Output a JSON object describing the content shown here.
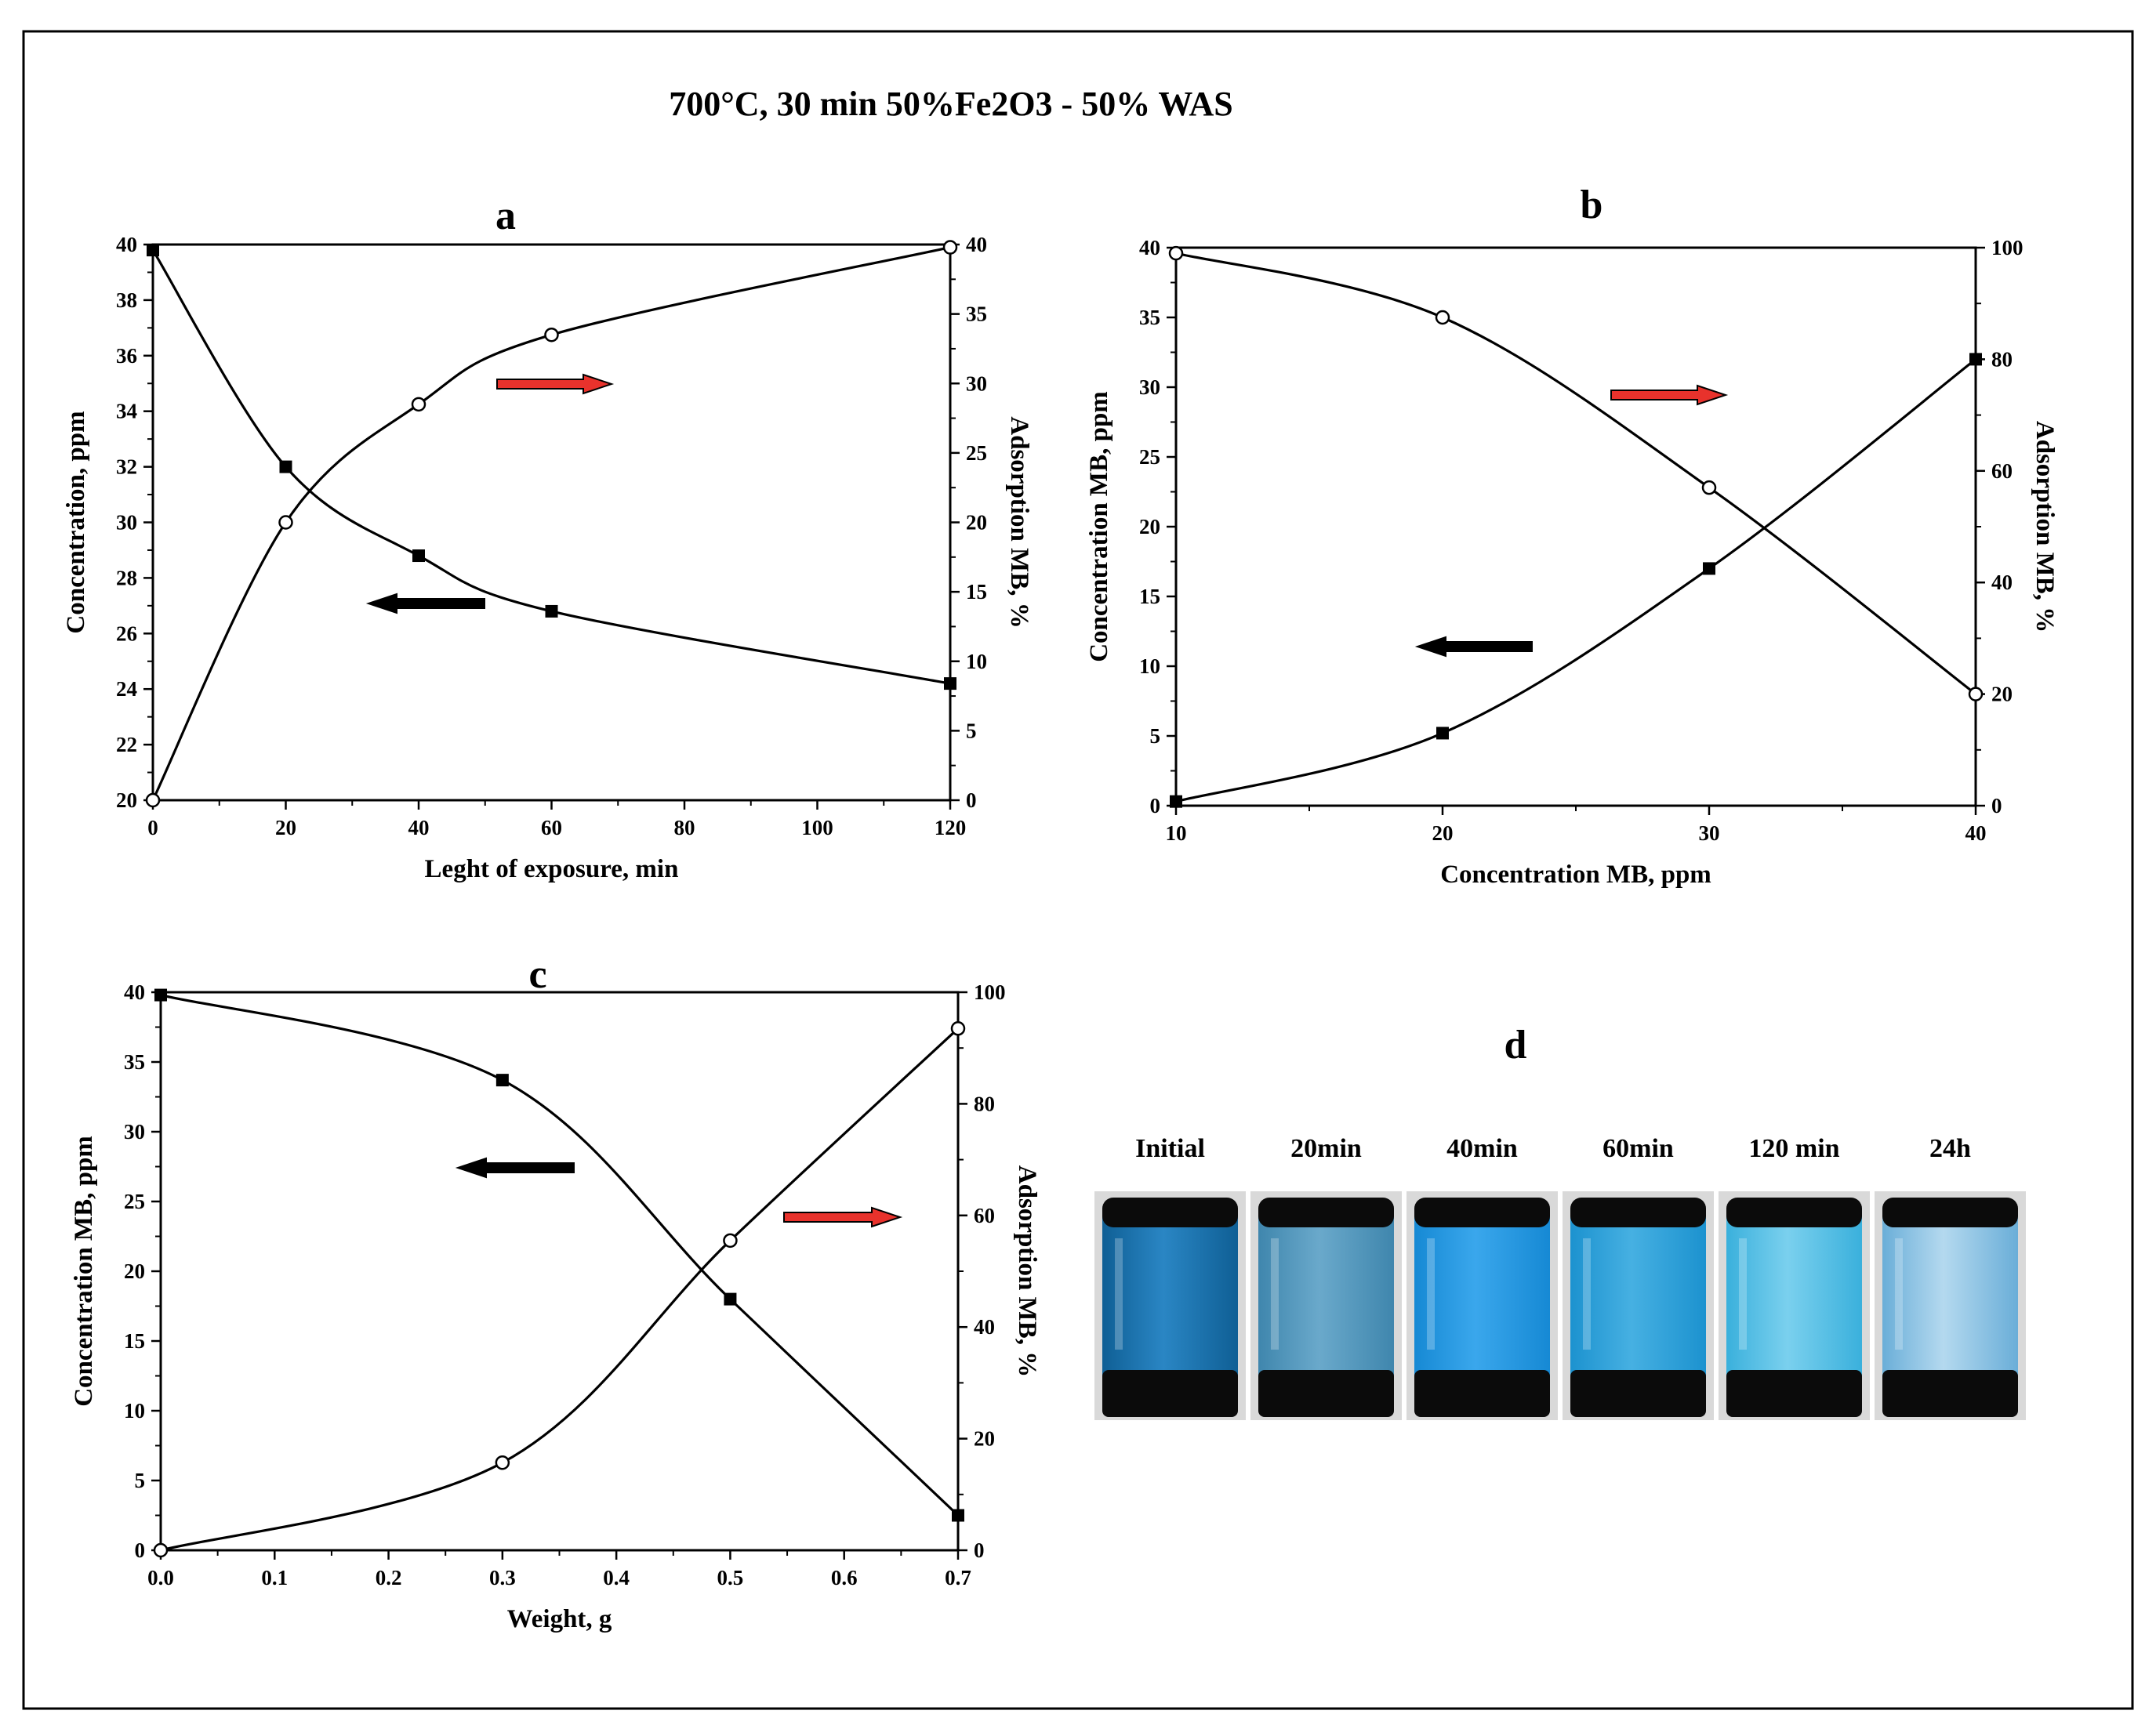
{
  "figure_title": "700°C, 30 min  50%Fe2O3 - 50% WAS",
  "colors": {
    "ink": "#000000",
    "red_arrow": "#e8322c",
    "vial_dark": "#0b0b0b"
  },
  "chart_data": [
    {
      "panel": "a",
      "type": "line",
      "title": "a",
      "xlabel": "Leght of exposure, min",
      "ylabel_left": "Concentration, ppm",
      "ylabel_right": "Adsorption MB, %",
      "xlim": [
        0,
        120
      ],
      "ylim_left": [
        20,
        40
      ],
      "ylim_right": [
        0,
        40
      ],
      "xticks": [
        0,
        20,
        40,
        60,
        80,
        100,
        120
      ],
      "yticks_left": [
        20,
        22,
        24,
        26,
        28,
        30,
        32,
        34,
        36,
        38,
        40
      ],
      "yticks_right": [
        0,
        5,
        10,
        15,
        20,
        25,
        30,
        35,
        40
      ],
      "series": [
        {
          "name": "Concentration",
          "axis": "left",
          "marker": "filled-square",
          "x": [
            0,
            20,
            40,
            60,
            120
          ],
          "y": [
            39.8,
            32,
            28.8,
            26.8,
            24.2
          ]
        },
        {
          "name": "Adsorption MB",
          "axis": "right",
          "marker": "open-circle",
          "x": [
            0,
            20,
            40,
            60,
            120
          ],
          "y": [
            0,
            20,
            28.5,
            33.5,
            39.8
          ]
        }
      ],
      "annotations": [
        {
          "kind": "arrow",
          "direction": "right",
          "color": "red",
          "meaning": "right axis"
        },
        {
          "kind": "arrow",
          "direction": "left",
          "color": "black",
          "meaning": "left axis"
        }
      ]
    },
    {
      "panel": "b",
      "type": "line",
      "title": "b",
      "xlabel": "Concentration MB, ppm",
      "ylabel_left": "Concentration MB, ppm",
      "ylabel_right": "Adsorption MB, %",
      "xlim": [
        10,
        40
      ],
      "ylim_left": [
        0,
        40
      ],
      "ylim_right": [
        0,
        100
      ],
      "xticks": [
        10,
        20,
        30,
        40
      ],
      "yticks_left": [
        0,
        5,
        10,
        15,
        20,
        25,
        30,
        35,
        40
      ],
      "yticks_right": [
        0,
        20,
        40,
        60,
        80,
        100
      ],
      "series": [
        {
          "name": "Concentration MB",
          "axis": "left",
          "marker": "filled-square",
          "x": [
            10,
            20,
            30,
            40
          ],
          "y": [
            0.3,
            5.2,
            17,
            32
          ]
        },
        {
          "name": "Adsorption MB",
          "axis": "right",
          "marker": "open-circle",
          "x": [
            10,
            20,
            30,
            40
          ],
          "y": [
            99,
            87.5,
            57,
            20
          ]
        }
      ],
      "annotations": [
        {
          "kind": "arrow",
          "direction": "right",
          "color": "red",
          "meaning": "right axis"
        },
        {
          "kind": "arrow",
          "direction": "left",
          "color": "black",
          "meaning": "left axis"
        }
      ]
    },
    {
      "panel": "c",
      "type": "line",
      "title": "c",
      "xlabel": "Weight, g",
      "ylabel_left": "Concentration MB, ppm",
      "ylabel_right": "Adsorption MB, %",
      "xlim": [
        0,
        0.7
      ],
      "ylim_left": [
        0,
        40
      ],
      "ylim_right": [
        0,
        100
      ],
      "xticks": [
        "0.0",
        "0.1",
        "0.2",
        "0.3",
        "0.4",
        "0.5",
        "0.6",
        "0.7"
      ],
      "yticks_left": [
        0,
        5,
        10,
        15,
        20,
        25,
        30,
        35,
        40
      ],
      "yticks_right": [
        0,
        20,
        40,
        60,
        80,
        100
      ],
      "series": [
        {
          "name": "Concentration MB",
          "axis": "left",
          "marker": "filled-square",
          "x": [
            0,
            0.3,
            0.5,
            0.7
          ],
          "y": [
            39.8,
            33.7,
            18,
            2.5
          ]
        },
        {
          "name": "Adsorption MB",
          "axis": "right",
          "marker": "open-circle",
          "x": [
            0,
            0.3,
            0.5,
            0.7
          ],
          "y": [
            0,
            15.7,
            55.5,
            93.5
          ]
        }
      ],
      "annotations": [
        {
          "kind": "arrow",
          "direction": "left",
          "color": "black",
          "meaning": "left axis"
        },
        {
          "kind": "arrow",
          "direction": "right",
          "color": "red",
          "meaning": "right axis"
        }
      ]
    }
  ],
  "panel_d": {
    "title": "d",
    "vials": [
      {
        "label": "Initial",
        "liquid_color": "#0f5f95",
        "liquid_highlight": "#2a86c4"
      },
      {
        "label": "20min",
        "liquid_color": "#3f86ad",
        "liquid_highlight": "#6aa9cb"
      },
      {
        "label": "40min",
        "liquid_color": "#1689d4",
        "liquid_highlight": "#3aa7ec"
      },
      {
        "label": "60min",
        "liquid_color": "#1c92cf",
        "liquid_highlight": "#46b0e2"
      },
      {
        "label": "120 min",
        "liquid_color": "#3ab0dc",
        "liquid_highlight": "#7ad0ee"
      },
      {
        "label": "24h",
        "liquid_color": "#6aaed8",
        "liquid_highlight": "#b4d9ef"
      }
    ]
  }
}
